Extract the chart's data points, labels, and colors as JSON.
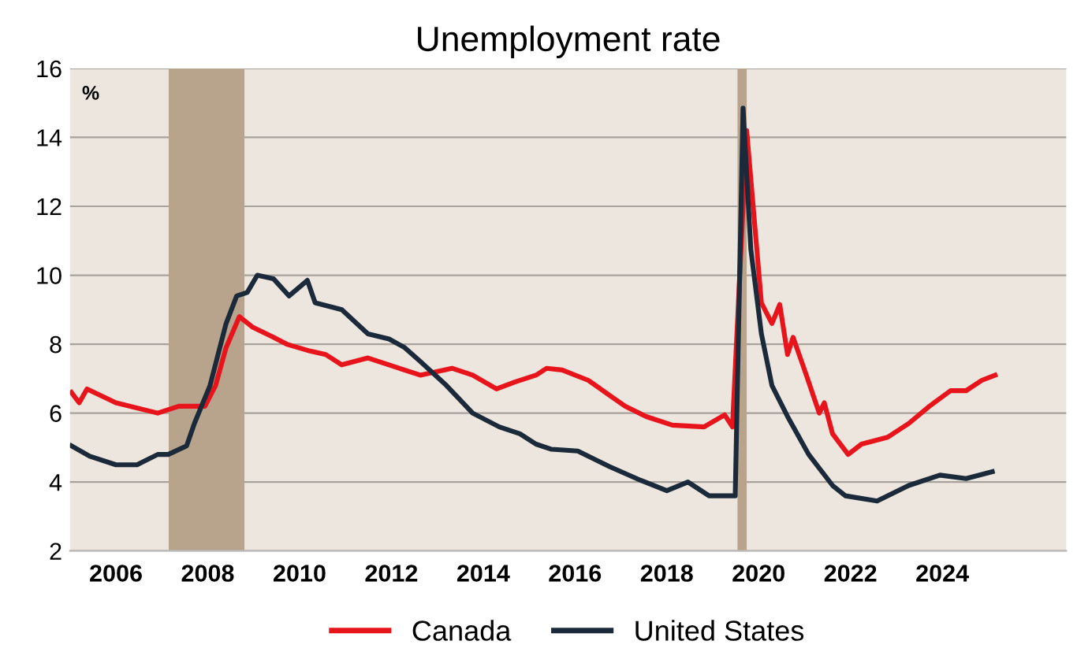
{
  "chart_data": {
    "type": "line",
    "title": "Unemployment rate",
    "annotations": [
      "%"
    ],
    "xlim": [
      2005.5,
      2027.2
    ],
    "xticks": [
      {
        "value": 2006.5,
        "label": "2006"
      },
      {
        "value": 2008.5,
        "label": "2008"
      },
      {
        "value": 2010.5,
        "label": "2010"
      },
      {
        "value": 2012.5,
        "label": "2012"
      },
      {
        "value": 2014.5,
        "label": "2014"
      },
      {
        "value": 2016.5,
        "label": "2016"
      },
      {
        "value": 2018.5,
        "label": "2018"
      },
      {
        "value": 2020.5,
        "label": "2020"
      },
      {
        "value": 2022.5,
        "label": "2022"
      },
      {
        "value": 2024.5,
        "label": "2024"
      }
    ],
    "ylim": [
      2,
      16
    ],
    "yticks": [
      2,
      4,
      6,
      8,
      10,
      12,
      14,
      16
    ],
    "grid": "y",
    "legend": "bottom",
    "bands": [
      {
        "axis": "x",
        "from": 2007.65,
        "to": 2009.3,
        "color": "#b8a48c"
      },
      {
        "axis": "x",
        "from": 2020.04,
        "to": 2020.24,
        "color": "#b8a48c"
      }
    ],
    "series": [
      {
        "name": "Canada",
        "color": "#e8141c",
        "x": [
          2005.53,
          2005.7,
          2005.87,
          2006.5,
          2007.41,
          2007.87,
          2008.44,
          2008.67,
          2008.9,
          2009.19,
          2009.47,
          2009.93,
          2010.22,
          2010.73,
          2011.07,
          2011.42,
          2011.99,
          2012.67,
          2013.13,
          2013.82,
          2014.27,
          2014.79,
          2015.19,
          2015.65,
          2015.88,
          2016.22,
          2016.79,
          2017.59,
          2018.05,
          2018.62,
          2019.31,
          2019.76,
          2019.93,
          2020.11,
          2020.24,
          2020.56,
          2020.79,
          2020.96,
          2021.13,
          2021.25,
          2021.54,
          2021.82,
          2021.93,
          2022.11,
          2022.45,
          2022.74,
          2023.31,
          2023.77,
          2024.22,
          2024.68,
          2025.02,
          2025.36,
          2025.65
        ],
        "values": [
          6.6,
          6.3,
          6.7,
          6.3,
          6.0,
          6.2,
          6.2,
          6.8,
          7.9,
          8.8,
          8.5,
          8.2,
          8.0,
          7.8,
          7.7,
          7.4,
          7.6,
          7.3,
          7.1,
          7.3,
          7.1,
          6.7,
          6.9,
          7.1,
          7.3,
          7.25,
          6.95,
          6.2,
          5.9,
          5.65,
          5.6,
          5.95,
          5.6,
          10.6,
          14.2,
          9.2,
          8.6,
          9.15,
          7.7,
          8.2,
          7.1,
          6.0,
          6.3,
          5.4,
          4.8,
          5.1,
          5.3,
          5.7,
          6.2,
          6.65,
          6.65,
          6.95,
          7.1
        ]
      },
      {
        "name": "United States",
        "color": "#1b2a3a",
        "x": [
          2005.53,
          2005.93,
          2006.5,
          2006.96,
          2007.41,
          2007.64,
          2008.04,
          2008.21,
          2008.55,
          2008.9,
          2009.13,
          2009.36,
          2009.58,
          2009.93,
          2010.27,
          2010.67,
          2010.84,
          2011.42,
          2011.99,
          2012.45,
          2012.79,
          2013.13,
          2013.7,
          2014.27,
          2014.85,
          2015.3,
          2015.65,
          2015.99,
          2016.56,
          2017.25,
          2017.93,
          2018.5,
          2018.96,
          2019.42,
          2019.99,
          2020.16,
          2020.33,
          2020.56,
          2020.79,
          2021.13,
          2021.59,
          2022.11,
          2022.39,
          2023.08,
          2023.77,
          2024.45,
          2025.02,
          2025.59
        ],
        "values": [
          5.05,
          4.75,
          4.5,
          4.5,
          4.8,
          4.8,
          5.05,
          5.7,
          6.8,
          8.6,
          9.4,
          9.5,
          10.0,
          9.9,
          9.4,
          9.85,
          9.2,
          9.0,
          8.3,
          8.15,
          7.9,
          7.5,
          6.8,
          6.0,
          5.6,
          5.4,
          5.1,
          4.95,
          4.9,
          4.45,
          4.05,
          3.75,
          4.0,
          3.6,
          3.6,
          14.85,
          10.75,
          8.3,
          6.8,
          5.9,
          4.8,
          3.9,
          3.6,
          3.45,
          3.9,
          4.2,
          4.1,
          4.3
        ]
      }
    ]
  }
}
